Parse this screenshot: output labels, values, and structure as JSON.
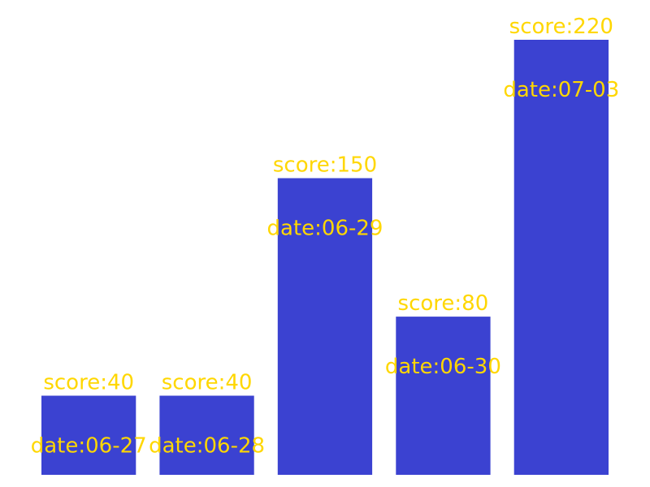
{
  "colors": {
    "bar": "#3b42d1",
    "label": "#ffd700",
    "background": "#ffffff"
  },
  "chart_data": {
    "type": "bar",
    "categories": [
      "06-27",
      "06-28",
      "06-29",
      "06-30",
      "07-03"
    ],
    "values": [
      40,
      40,
      150,
      80,
      220
    ],
    "bar_labels": [
      "score:40",
      "score:40",
      "score:150",
      "score:80",
      "score:220"
    ],
    "category_labels": [
      "date:06-27",
      "date:06-28",
      "date:06-29",
      "date:06-30",
      "date:07-03"
    ],
    "ylim": [
      0,
      220
    ],
    "grid": false,
    "legend": "none"
  }
}
